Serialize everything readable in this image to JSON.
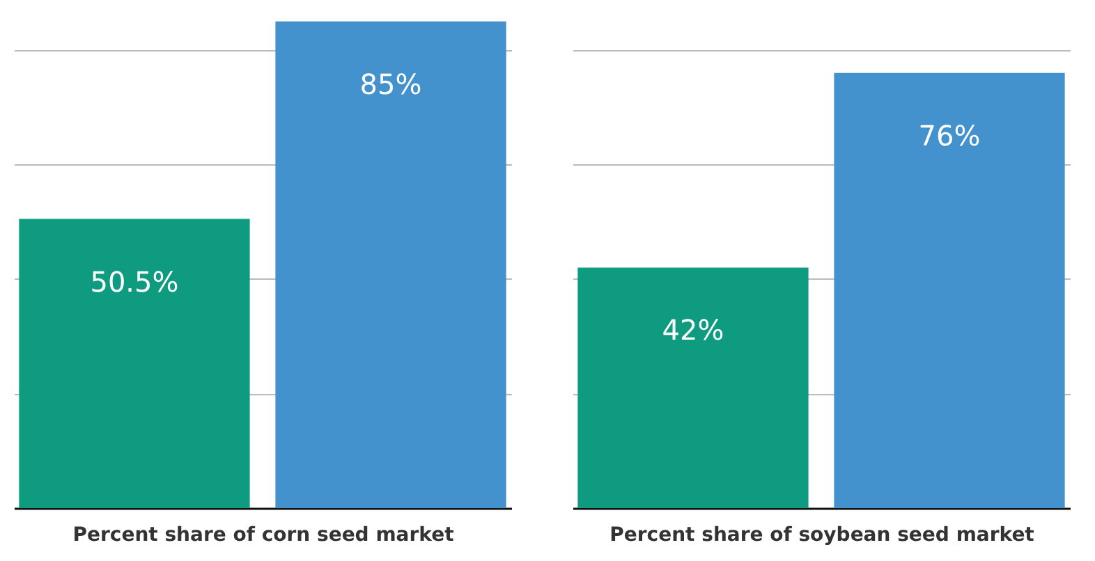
{
  "chart_data": [
    {
      "type": "bar",
      "xlabel": "Percent share of corn seed market",
      "categories": [
        null,
        null
      ],
      "values": [
        50.5,
        85
      ],
      "colors": [
        "#0f9b80",
        "#4392cd"
      ],
      "value_labels": [
        "50.5%",
        "85%"
      ],
      "ylim": [
        0,
        88
      ],
      "yticks": [
        {
          "value": 0,
          "label": null
        },
        {
          "value": 20,
          "label": null
        },
        {
          "value": 40,
          "label": null
        },
        {
          "value": 60,
          "label": null
        },
        {
          "value": 80,
          "label": null
        }
      ],
      "grid": "y",
      "tick_labels": false
    },
    {
      "type": "bar",
      "xlabel": "Percent share of soybean seed market",
      "categories": [
        null,
        null
      ],
      "values": [
        42,
        76
      ],
      "colors": [
        "#0f9b80",
        "#4392cd"
      ],
      "value_labels": [
        "42%",
        "76%"
      ],
      "ylim": [
        0,
        88
      ],
      "yticks": [
        {
          "value": 0,
          "label": null
        },
        {
          "value": 20,
          "label": null
        },
        {
          "value": 40,
          "label": null
        },
        {
          "value": 60,
          "label": null
        },
        {
          "value": 80,
          "label": null
        }
      ],
      "grid": "y",
      "tick_labels": false
    }
  ]
}
